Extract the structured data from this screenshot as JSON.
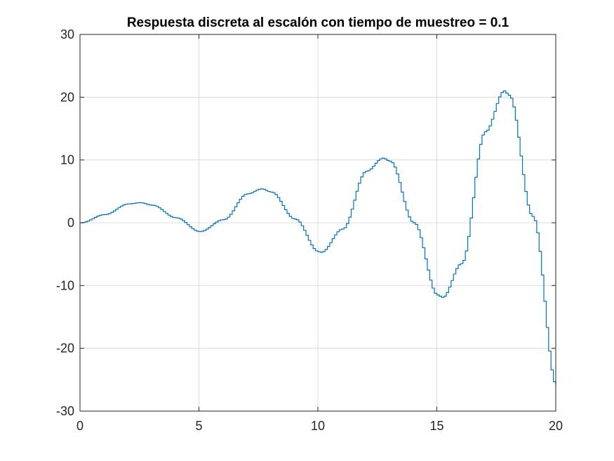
{
  "chart_data": {
    "type": "line",
    "style": "stairs",
    "title": "Respuesta discreta al escalón con tiempo de muestreo = 0.1",
    "xlabel": "",
    "ylabel": "",
    "xlim": [
      0,
      20
    ],
    "ylim": [
      -30,
      30
    ],
    "xticks": [
      0,
      5,
      10,
      15,
      20
    ],
    "xtick_labels": [
      "0",
      "5",
      "10",
      "15",
      "20"
    ],
    "yticks": [
      -30,
      -20,
      -10,
      0,
      10,
      20,
      30
    ],
    "ytick_labels": [
      "-30",
      "-20",
      "-10",
      "0",
      "10",
      "20",
      "30"
    ],
    "grid": true,
    "sample_time": 0.1,
    "series_color": "#0072bd",
    "x": [
      0,
      1,
      2,
      2.5,
      3,
      4,
      5,
      6,
      7,
      7.6,
      8,
      9,
      10,
      10.1,
      11,
      12,
      12.7,
      13,
      14,
      15,
      15.2,
      16,
      17,
      17.8,
      18,
      19,
      20
    ],
    "y": [
      0,
      1.3,
      3.0,
      3.2,
      2.8,
      0.8,
      -1.4,
      0.5,
      4.6,
      5.4,
      4.9,
      0.6,
      -4.6,
      -4.7,
      -1.0,
      8.2,
      10.3,
      9.8,
      0.0,
      -11.5,
      -11.9,
      -6.5,
      14.5,
      21.0,
      20.3,
      1.0,
      -26.0
    ]
  }
}
